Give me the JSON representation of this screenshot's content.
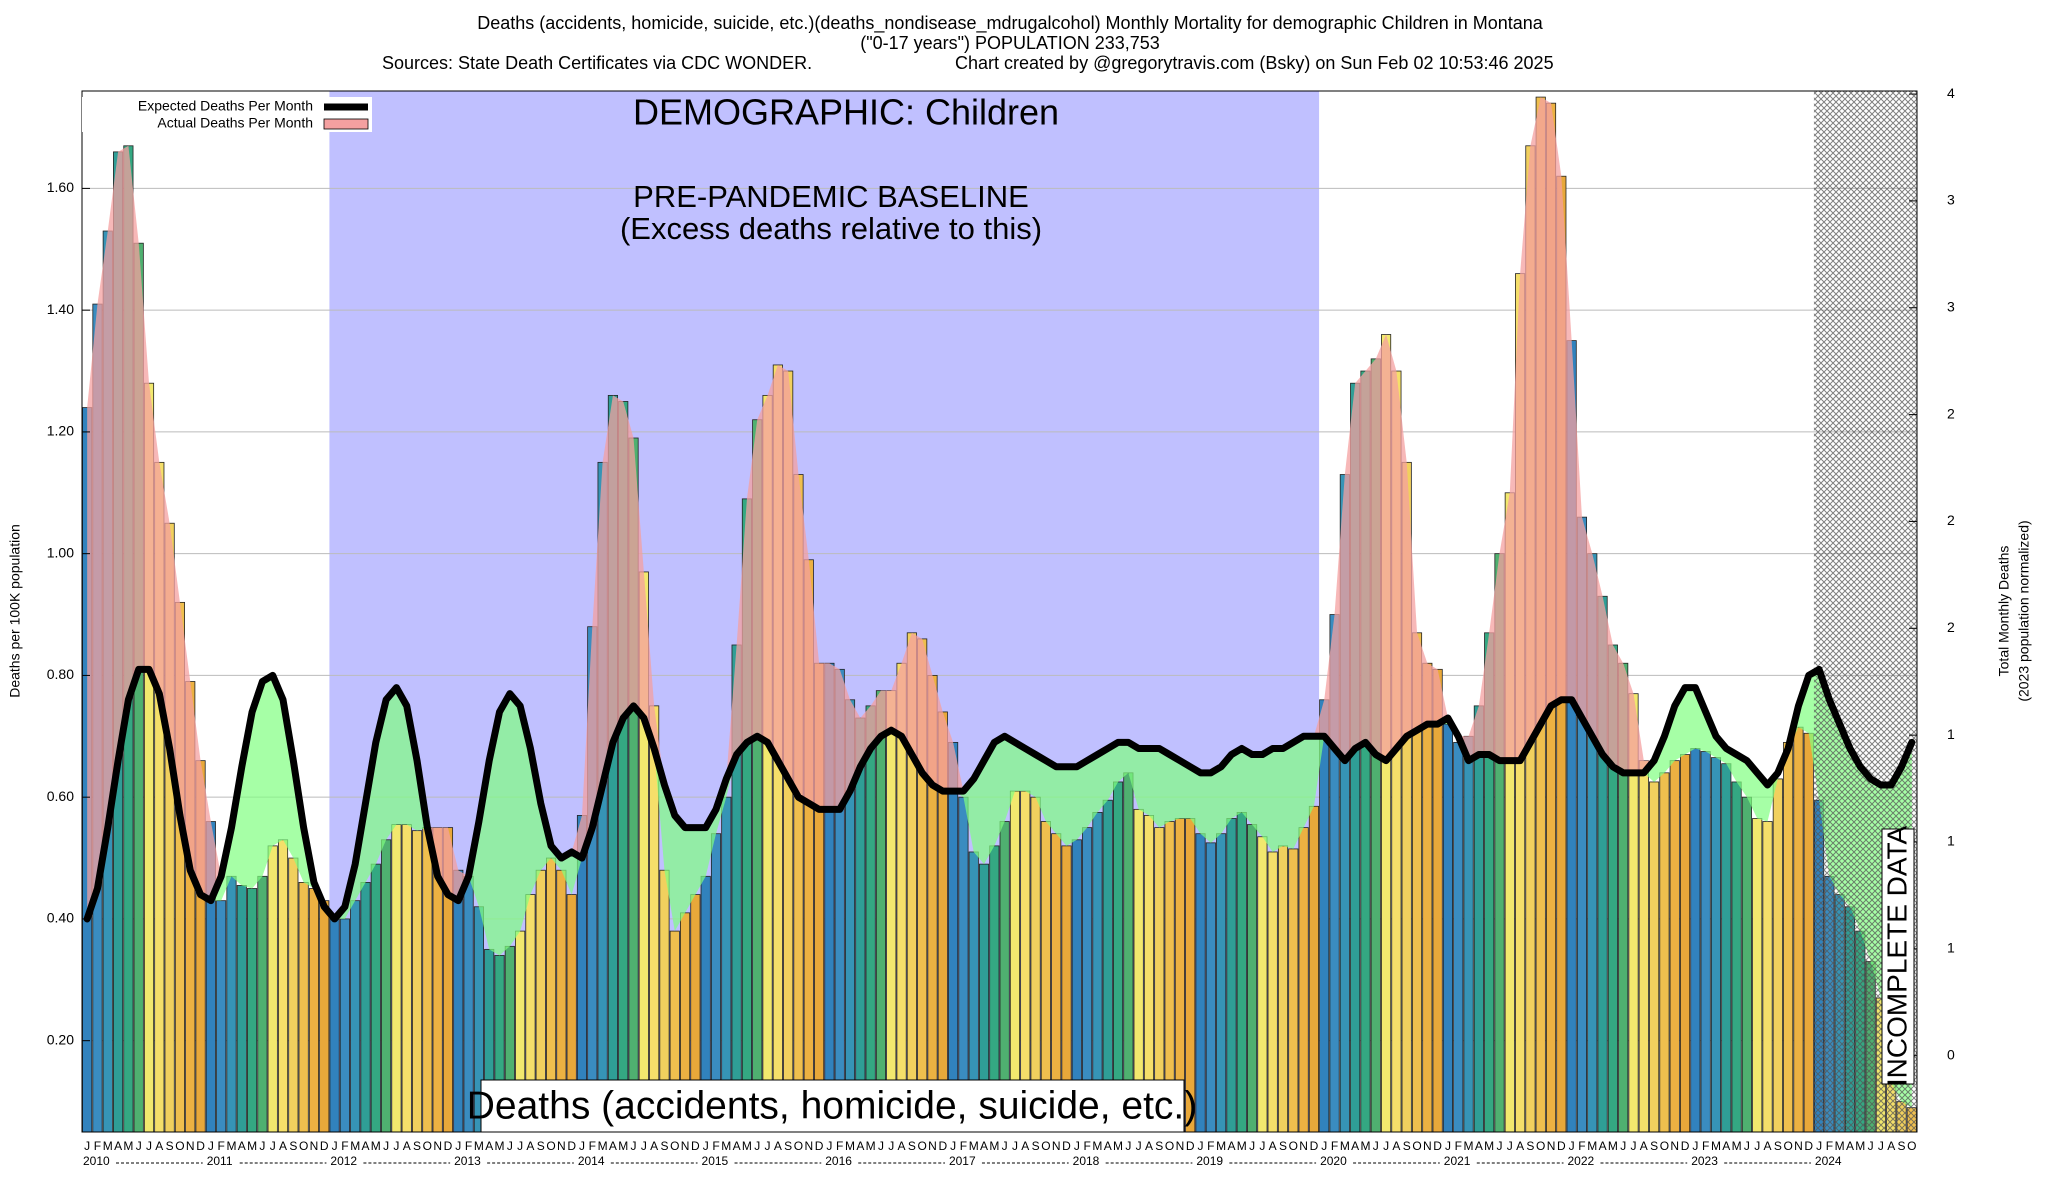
{
  "chart_data": {
    "type": "bar",
    "title": "Deaths (accidents, homicide, suicide, etc.)(deaths_nondisease_mdrugalcohol) Monthly Mortality for demographic Children in Montana",
    "subtitle": "(\"0-17 years\") POPULATION 233,753",
    "source": "Sources: State Death Certificates via CDC WONDER.",
    "credit": "Chart created by @gregorytravis.com (Bsky) on Sun Feb 02 10:53:46 2025",
    "y_label": "Deaths per 100K population",
    "y2_label": "Total Monthly Deaths",
    "y2_sublabel": "(2023 population normalized)",
    "annotations": {
      "demographic": "DEMOGRAPHIC: Children",
      "baseline": "PRE-PANDEMIC BASELINE",
      "baseline_note": "(Excess deaths relative to this)",
      "cause": "Deaths (accidents, homicide, suicide, etc.)",
      "incomplete": "INCOMPLETE DATA"
    },
    "years": [
      "2010",
      "2011",
      "2012",
      "2013",
      "2014",
      "2015",
      "2016",
      "2017",
      "2018",
      "2019",
      "2020",
      "2021",
      "2022",
      "2023",
      "2024"
    ],
    "categories": [
      "J",
      "F",
      "M",
      "A",
      "M",
      "J",
      "J",
      "A",
      "S",
      "O",
      "N",
      "D",
      "J",
      "F",
      "M",
      "A",
      "M",
      "J",
      "J",
      "A",
      "S",
      "O",
      "N",
      "D",
      "J",
      "F",
      "M",
      "A",
      "M",
      "J",
      "J",
      "A",
      "S",
      "O",
      "N",
      "D",
      "J",
      "F",
      "M",
      "A",
      "M",
      "J",
      "J",
      "A",
      "S",
      "O",
      "N",
      "D",
      "J",
      "F",
      "M",
      "A",
      "M",
      "J",
      "J",
      "A",
      "S",
      "O",
      "N",
      "D",
      "J",
      "F",
      "M",
      "A",
      "M",
      "J",
      "J",
      "A",
      "S",
      "O",
      "N",
      "D",
      "J",
      "F",
      "M",
      "A",
      "M",
      "J",
      "J",
      "A",
      "S",
      "O",
      "N",
      "D",
      "J",
      "F",
      "M",
      "A",
      "M",
      "J",
      "J",
      "A",
      "S",
      "O",
      "N",
      "D",
      "J",
      "F",
      "M",
      "A",
      "M",
      "J",
      "J",
      "A",
      "S",
      "O",
      "N",
      "D",
      "J",
      "F",
      "M",
      "A",
      "M",
      "J",
      "J",
      "A",
      "S",
      "O",
      "N",
      "D",
      "J",
      "F",
      "M",
      "A",
      "M",
      "J",
      "J",
      "A",
      "S",
      "O",
      "N",
      "D",
      "J",
      "F",
      "M",
      "A",
      "M",
      "J",
      "J",
      "A",
      "S",
      "O",
      "N",
      "D",
      "J",
      "F",
      "M",
      "A",
      "M",
      "J",
      "J",
      "A",
      "S",
      "O",
      "N",
      "D",
      "J",
      "F",
      "M",
      "A",
      "M",
      "J",
      "J",
      "A",
      "S",
      "O",
      "N",
      "D",
      "J",
      "F",
      "M",
      "A",
      "M",
      "J",
      "J",
      "A",
      "S",
      "O"
    ],
    "series": [
      {
        "name": "Expected Deaths Per Month",
        "color": "#000000",
        "values": [
          0.4,
          0.45,
          0.55,
          0.66,
          0.76,
          0.81,
          0.81,
          0.77,
          0.68,
          0.57,
          0.48,
          0.44,
          0.43,
          0.47,
          0.55,
          0.65,
          0.74,
          0.79,
          0.8,
          0.76,
          0.66,
          0.55,
          0.46,
          0.42,
          0.4,
          0.42,
          0.49,
          0.59,
          0.69,
          0.76,
          0.78,
          0.75,
          0.66,
          0.55,
          0.47,
          0.44,
          0.43,
          0.47,
          0.56,
          0.66,
          0.74,
          0.77,
          0.75,
          0.68,
          0.59,
          0.52,
          0.5,
          0.51,
          0.5,
          0.55,
          0.62,
          0.69,
          0.73,
          0.75,
          0.73,
          0.68,
          0.62,
          0.57,
          0.55,
          0.55,
          0.55,
          0.58,
          0.63,
          0.67,
          0.69,
          0.7,
          0.69,
          0.66,
          0.63,
          0.6,
          0.59,
          0.58,
          0.58,
          0.58,
          0.61,
          0.65,
          0.68,
          0.7,
          0.71,
          0.7,
          0.67,
          0.64,
          0.62,
          0.61,
          0.61,
          0.61,
          0.63,
          0.66,
          0.69,
          0.7,
          0.69,
          0.68,
          0.67,
          0.66,
          0.65,
          0.65,
          0.65,
          0.66,
          0.67,
          0.68,
          0.69,
          0.69,
          0.68,
          0.68,
          0.68,
          0.67,
          0.66,
          0.65,
          0.64,
          0.64,
          0.65,
          0.67,
          0.68,
          0.67,
          0.67,
          0.68,
          0.68,
          0.69,
          0.7,
          0.7,
          0.7,
          0.68,
          0.66,
          0.68,
          0.69,
          0.67,
          0.66,
          0.68,
          0.7,
          0.71,
          0.72,
          0.72,
          0.73,
          0.7,
          0.66,
          0.67,
          0.67,
          0.66,
          0.66,
          0.66,
          0.69,
          0.72,
          0.75,
          0.76,
          0.76,
          0.73,
          0.7,
          0.67,
          0.65,
          0.64,
          0.64,
          0.64,
          0.66,
          0.7,
          0.75,
          0.78,
          0.78,
          0.74,
          0.7,
          0.68,
          0.67,
          0.66,
          0.64,
          0.62,
          0.64,
          0.68,
          0.75,
          0.8,
          0.81,
          0.76,
          0.72,
          0.68,
          0.65,
          0.63,
          0.62,
          0.62,
          0.65,
          0.69
        ]
      },
      {
        "name": "Actual Deaths Per Month",
        "color": "#f4a0a0",
        "values": [
          1.24,
          1.41,
          1.53,
          1.66,
          1.67,
          1.51,
          1.28,
          1.15,
          1.05,
          0.92,
          0.79,
          0.66,
          0.56,
          0.43,
          0.47,
          0.455,
          0.45,
          0.47,
          0.52,
          0.53,
          0.5,
          0.46,
          0.45,
          0.43,
          0.4,
          0.4,
          0.43,
          0.46,
          0.49,
          0.53,
          0.555,
          0.555,
          0.545,
          0.55,
          0.55,
          0.55,
          0.48,
          0.47,
          0.42,
          0.35,
          0.34,
          0.355,
          0.38,
          0.44,
          0.48,
          0.5,
          0.48,
          0.44,
          0.57,
          0.88,
          1.15,
          1.26,
          1.25,
          1.19,
          0.97,
          0.75,
          0.48,
          0.38,
          0.41,
          0.44,
          0.47,
          0.54,
          0.6,
          0.85,
          1.09,
          1.22,
          1.26,
          1.31,
          1.3,
          1.13,
          0.99,
          0.82,
          0.82,
          0.81,
          0.76,
          0.73,
          0.75,
          0.775,
          0.775,
          0.82,
          0.87,
          0.86,
          0.8,
          0.74,
          0.69,
          0.6,
          0.51,
          0.49,
          0.52,
          0.56,
          0.61,
          0.61,
          0.6,
          0.56,
          0.54,
          0.52,
          0.53,
          0.55,
          0.575,
          0.595,
          0.625,
          0.64,
          0.58,
          0.57,
          0.55,
          0.56,
          0.565,
          0.565,
          0.54,
          0.525,
          0.54,
          0.565,
          0.575,
          0.555,
          0.535,
          0.51,
          0.52,
          0.515,
          0.55,
          0.585,
          0.76,
          0.9,
          1.13,
          1.28,
          1.3,
          1.32,
          1.36,
          1.3,
          1.15,
          0.87,
          0.82,
          0.81,
          0.72,
          0.69,
          0.7,
          0.75,
          0.87,
          1.0,
          1.1,
          1.46,
          1.67,
          1.75,
          1.74,
          1.62,
          1.35,
          1.06,
          1.0,
          0.93,
          0.85,
          0.82,
          0.77,
          0.66,
          0.625,
          0.64,
          0.66,
          0.67,
          0.68,
          0.675,
          0.665,
          0.655,
          0.625,
          0.6,
          0.565,
          0.56,
          0.63,
          0.69,
          0.715,
          0.705,
          0.595,
          0.47,
          0.44,
          0.42,
          0.38,
          0.33,
          0.27,
          0.13,
          0.1,
          0.09
        ]
      }
    ],
    "month_colors": [
      "#3182bd",
      "#3a8cc0",
      "#3694b6",
      "#2f9e96",
      "#34a882",
      "#4fb070",
      "#f2e86e",
      "#f5df6a",
      "#f1d05e",
      "#efbf4e",
      "#ecb142",
      "#e8a83a"
    ],
    "deficit_color": "#80ff80",
    "baseline_color": "#c0c0ff",
    "ylim": [
      0.05,
      1.76
    ],
    "yticks": [
      {
        "value": 0.2,
        "label": "0.20"
      },
      {
        "value": 0.4,
        "label": "0.40"
      },
      {
        "value": 0.6,
        "label": "0.60"
      },
      {
        "value": 0.8,
        "label": "0.80"
      },
      {
        "value": 1.0,
        "label": "1.00"
      },
      {
        "value": 1.2,
        "label": "1.20"
      },
      {
        "value": 1.4,
        "label": "1.40"
      },
      {
        "value": 1.6,
        "label": "1.60"
      }
    ],
    "y2lim": [
      0.11,
      3.52
    ],
    "y2ticks": [
      {
        "value": 0.36,
        "label": "0"
      },
      {
        "value": 0.71,
        "label": "1"
      },
      {
        "value": 1.06,
        "label": "1"
      },
      {
        "value": 1.41,
        "label": "1"
      },
      {
        "value": 1.76,
        "label": "2"
      },
      {
        "value": 2.11,
        "label": "2"
      },
      {
        "value": 2.46,
        "label": "2"
      },
      {
        "value": 2.81,
        "label": "3"
      },
      {
        "value": 3.16,
        "label": "3"
      },
      {
        "value": 3.51,
        "label": "4"
      }
    ],
    "grid": true,
    "legend": "top-left"
  }
}
